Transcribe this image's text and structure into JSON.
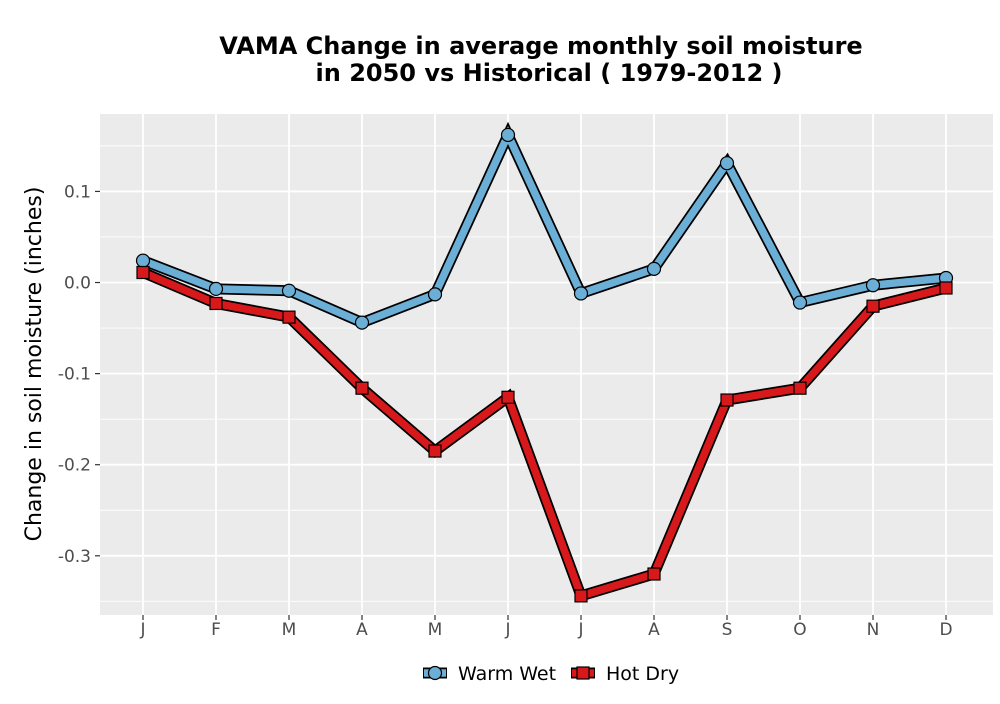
{
  "chart_data": {
    "type": "line",
    "title": "VAMA  Change in average monthly soil moisture",
    "subtitle": "in 2050 vs Historical ( 1979-2012 )",
    "xlabel": "",
    "ylabel": "Change in soil moisture (inches)",
    "categories": [
      "J",
      "F",
      "M",
      "A",
      "M",
      "J",
      "J",
      "A",
      "S",
      "O",
      "N",
      "D"
    ],
    "ylim": [
      -0.365,
      0.185
    ],
    "yticks": [
      -0.3,
      -0.2,
      -0.1,
      0.0,
      0.1
    ],
    "ytick_labels": [
      "-0.3",
      "-0.2",
      "-0.1",
      "0.0",
      "0.1"
    ],
    "grid": true,
    "legend_position": "bottom",
    "background": "#ebebeb",
    "series": [
      {
        "name": "Warm Wet",
        "marker": "circle",
        "color": "#6baed6",
        "values": [
          0.024,
          -0.007,
          -0.009,
          -0.044,
          -0.013,
          0.162,
          -0.012,
          0.015,
          0.131,
          -0.022,
          -0.003,
          0.005
        ]
      },
      {
        "name": "Hot Dry",
        "marker": "square",
        "color": "#d7191c",
        "values": [
          0.011,
          -0.023,
          -0.038,
          -0.116,
          -0.185,
          -0.126,
          -0.344,
          -0.32,
          -0.129,
          -0.116,
          -0.026,
          -0.006
        ]
      }
    ]
  }
}
